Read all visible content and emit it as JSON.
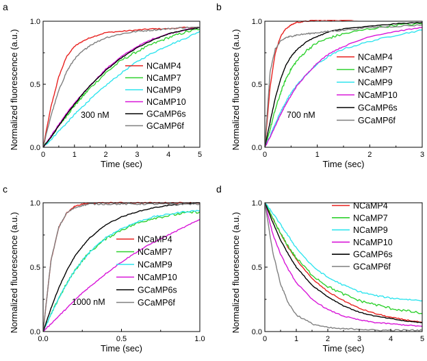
{
  "panels": [
    {
      "letter": "a",
      "note": "300 nM",
      "xlabel": "Time (sec)",
      "ylabel": "Normalized fluorescence (a.u.)",
      "xlim": [
        0,
        5
      ],
      "ylim": [
        0,
        1.0
      ],
      "xticks": [
        "0",
        "1",
        "2",
        "3",
        "4",
        "5"
      ],
      "yticks": [
        "0.0",
        "0.5",
        "1.0"
      ],
      "legend": [
        "NCaMP4",
        "NCaMP7",
        "NCaMP9",
        "NCaMP10",
        "GCaMP6s",
        "GCaMP6f"
      ]
    },
    {
      "letter": "b",
      "note": "700 nM",
      "xlabel": "Time (sec)",
      "ylabel": "Normalized fluorescence (a.u.)",
      "xlim": [
        0,
        3
      ],
      "ylim": [
        0,
        1.0
      ],
      "xticks": [
        "0",
        "1",
        "2",
        "3"
      ],
      "yticks": [
        "0.0",
        "0.5",
        "1.0"
      ],
      "legend": [
        "NCaMP4",
        "NCaMP7",
        "NCaMP9",
        "NCaMP10",
        "GCaMP6s",
        "GCaMP6f"
      ]
    },
    {
      "letter": "c",
      "note": "1000 nM",
      "xlabel": "Time (sec)",
      "ylabel": "Normalized fluorescence (a.u.)",
      "xlim": [
        0,
        1.0
      ],
      "ylim": [
        0,
        1.0
      ],
      "xticks": [
        "0.0",
        "0.5",
        "1.0"
      ],
      "yticks": [
        "0.0",
        "0.5",
        "1.0"
      ],
      "legend": [
        "NCaMP4",
        "NCaMP7",
        "NCaMP9",
        "NCaMP10",
        "GCaMP6s",
        "GCaMP6f"
      ]
    },
    {
      "letter": "d",
      "note": "",
      "xlabel": "Time (sec)",
      "ylabel": "Normalized fluorescence (a.u.)",
      "xlim": [
        0,
        5
      ],
      "ylim": [
        0,
        1.0
      ],
      "xticks": [
        "0",
        "1",
        "2",
        "3",
        "4",
        "5"
      ],
      "yticks": [
        "0.0",
        "0.5",
        "1.0"
      ],
      "legend": [
        "NCaMP4",
        "NCaMP7",
        "NCaMP9",
        "NCaMP10",
        "GCaMP6s",
        "GCaMP6f"
      ]
    }
  ],
  "colors": {
    "NCaMP4": "#e8201e",
    "NCaMP7": "#2ed12e",
    "NCaMP9": "#2fe4ee",
    "NCaMP10": "#d814d8",
    "GCaMP6s": "#000000",
    "GCaMP6f": "#7f7f7f"
  },
  "chart_data": [
    {
      "type": "line",
      "xlim": [
        0,
        5
      ],
      "ylim": [
        0,
        1.0
      ],
      "x": [
        0,
        0.25,
        0.5,
        0.75,
        1,
        1.25,
        1.5,
        2,
        2.5,
        3,
        3.5,
        4,
        4.5,
        5
      ],
      "series": [
        {
          "name": "NCaMP4",
          "values": [
            0,
            0.32,
            0.56,
            0.72,
            0.8,
            0.84,
            0.87,
            0.91,
            0.92,
            0.93,
            0.94,
            0.94,
            0.95,
            0.95
          ]
        },
        {
          "name": "NCaMP7",
          "values": [
            0,
            0.08,
            0.17,
            0.25,
            0.33,
            0.4,
            0.47,
            0.59,
            0.69,
            0.76,
            0.82,
            0.87,
            0.91,
            0.94
          ]
        },
        {
          "name": "NCaMP9",
          "values": [
            0,
            0.06,
            0.13,
            0.19,
            0.26,
            0.32,
            0.38,
            0.49,
            0.59,
            0.68,
            0.75,
            0.81,
            0.86,
            0.92
          ]
        },
        {
          "name": "NCaMP10",
          "values": [
            0,
            0.09,
            0.18,
            0.27,
            0.35,
            0.42,
            0.49,
            0.62,
            0.72,
            0.8,
            0.86,
            0.9,
            0.93,
            0.95
          ]
        },
        {
          "name": "GCaMP6s",
          "values": [
            0,
            0.08,
            0.17,
            0.26,
            0.34,
            0.42,
            0.49,
            0.61,
            0.71,
            0.79,
            0.85,
            0.9,
            0.93,
            0.95
          ]
        },
        {
          "name": "GCaMP6f",
          "values": [
            0,
            0.25,
            0.45,
            0.6,
            0.7,
            0.76,
            0.81,
            0.87,
            0.9,
            0.92,
            0.93,
            0.94,
            0.95,
            0.95
          ]
        }
      ]
    },
    {
      "type": "line",
      "xlim": [
        0,
        3
      ],
      "ylim": [
        0,
        1.0
      ],
      "x": [
        0,
        0.1,
        0.2,
        0.3,
        0.4,
        0.5,
        0.6,
        0.8,
        1.0,
        1.25,
        1.5,
        2.0,
        2.5,
        3.0
      ],
      "series": [
        {
          "name": "NCaMP4",
          "values": [
            0,
            0.48,
            0.75,
            0.88,
            0.94,
            0.97,
            0.99,
            1.0,
            1.01,
            1.01,
            1.01,
            1.02,
            1.02,
            1.02
          ]
        },
        {
          "name": "NCaMP7",
          "values": [
            0,
            0.14,
            0.3,
            0.43,
            0.54,
            0.62,
            0.68,
            0.77,
            0.83,
            0.87,
            0.9,
            0.94,
            0.97,
            0.98
          ]
        },
        {
          "name": "NCaMP9",
          "values": [
            0,
            0.09,
            0.19,
            0.28,
            0.36,
            0.43,
            0.49,
            0.58,
            0.66,
            0.73,
            0.78,
            0.84,
            0.89,
            0.93
          ]
        },
        {
          "name": "NCaMP10",
          "values": [
            0,
            0.08,
            0.17,
            0.26,
            0.34,
            0.41,
            0.48,
            0.58,
            0.67,
            0.75,
            0.8,
            0.88,
            0.92,
            0.95
          ]
        },
        {
          "name": "GCaMP6s",
          "values": [
            0,
            0.2,
            0.39,
            0.54,
            0.65,
            0.72,
            0.77,
            0.84,
            0.88,
            0.92,
            0.94,
            0.96,
            0.98,
            0.99
          ]
        },
        {
          "name": "GCaMP6f",
          "values": [
            0,
            0.6,
            0.78,
            0.84,
            0.87,
            0.88,
            0.89,
            0.9,
            0.91,
            0.92,
            0.93,
            0.95,
            0.96,
            0.97
          ]
        }
      ]
    },
    {
      "type": "line",
      "xlim": [
        0,
        1.0
      ],
      "ylim": [
        0,
        1.0
      ],
      "x": [
        0,
        0.05,
        0.1,
        0.15,
        0.2,
        0.25,
        0.3,
        0.4,
        0.5,
        0.6,
        0.7,
        0.8,
        0.9,
        1.0
      ],
      "series": [
        {
          "name": "NCaMP4",
          "values": [
            0,
            0.55,
            0.81,
            0.92,
            0.97,
            0.99,
            0.995,
            1.0,
            1.0,
            1.0,
            1.0,
            1.0,
            1.0,
            1.0
          ]
        },
        {
          "name": "NCaMP7",
          "values": [
            0,
            0.13,
            0.26,
            0.37,
            0.47,
            0.55,
            0.62,
            0.72,
            0.79,
            0.84,
            0.88,
            0.9,
            0.92,
            0.93
          ]
        },
        {
          "name": "NCaMP9",
          "values": [
            0,
            0.13,
            0.26,
            0.37,
            0.47,
            0.55,
            0.62,
            0.73,
            0.8,
            0.85,
            0.89,
            0.91,
            0.93,
            0.94
          ]
        },
        {
          "name": "NCaMP10",
          "values": [
            0,
            0.06,
            0.12,
            0.18,
            0.24,
            0.3,
            0.35,
            0.45,
            0.54,
            0.62,
            0.69,
            0.75,
            0.81,
            0.87
          ]
        },
        {
          "name": "GCaMP6s",
          "values": [
            0,
            0.18,
            0.34,
            0.47,
            0.58,
            0.66,
            0.73,
            0.83,
            0.89,
            0.93,
            0.96,
            0.98,
            0.99,
            1.0
          ]
        },
        {
          "name": "GCaMP6f",
          "values": [
            0,
            0.55,
            0.81,
            0.92,
            0.96,
            0.98,
            0.99,
            0.99,
            0.99,
            0.99,
            0.99,
            0.99,
            0.99,
            0.99
          ]
        }
      ]
    },
    {
      "type": "line",
      "xlim": [
        0,
        5
      ],
      "ylim": [
        0,
        1.0
      ],
      "x": [
        0,
        0.25,
        0.5,
        0.75,
        1,
        1.5,
        2,
        2.5,
        3,
        3.5,
        4,
        4.5,
        5
      ],
      "series": [
        {
          "name": "NCaMP4",
          "values": [
            1.0,
            0.88,
            0.76,
            0.65,
            0.56,
            0.41,
            0.31,
            0.24,
            0.18,
            0.14,
            0.11,
            0.09,
            0.07
          ]
        },
        {
          "name": "NCaMP7",
          "values": [
            1.0,
            0.88,
            0.76,
            0.66,
            0.57,
            0.44,
            0.35,
            0.29,
            0.24,
            0.21,
            0.18,
            0.16,
            0.14
          ]
        },
        {
          "name": "NCaMP9",
          "values": [
            1.0,
            0.92,
            0.83,
            0.74,
            0.65,
            0.51,
            0.42,
            0.36,
            0.31,
            0.28,
            0.26,
            0.25,
            0.24
          ]
        },
        {
          "name": "NCaMP10",
          "values": [
            1.0,
            0.76,
            0.6,
            0.48,
            0.38,
            0.25,
            0.17,
            0.12,
            0.09,
            0.07,
            0.06,
            0.05,
            0.04
          ]
        },
        {
          "name": "GCaMP6s",
          "values": [
            1.0,
            0.85,
            0.71,
            0.6,
            0.5,
            0.36,
            0.27,
            0.2,
            0.15,
            0.12,
            0.1,
            0.08,
            0.07
          ]
        },
        {
          "name": "GCaMP6f",
          "values": [
            1.0,
            0.62,
            0.37,
            0.22,
            0.13,
            0.06,
            0.03,
            0.02,
            0.02,
            0.01,
            0.01,
            0.01,
            0.01
          ]
        }
      ]
    }
  ]
}
